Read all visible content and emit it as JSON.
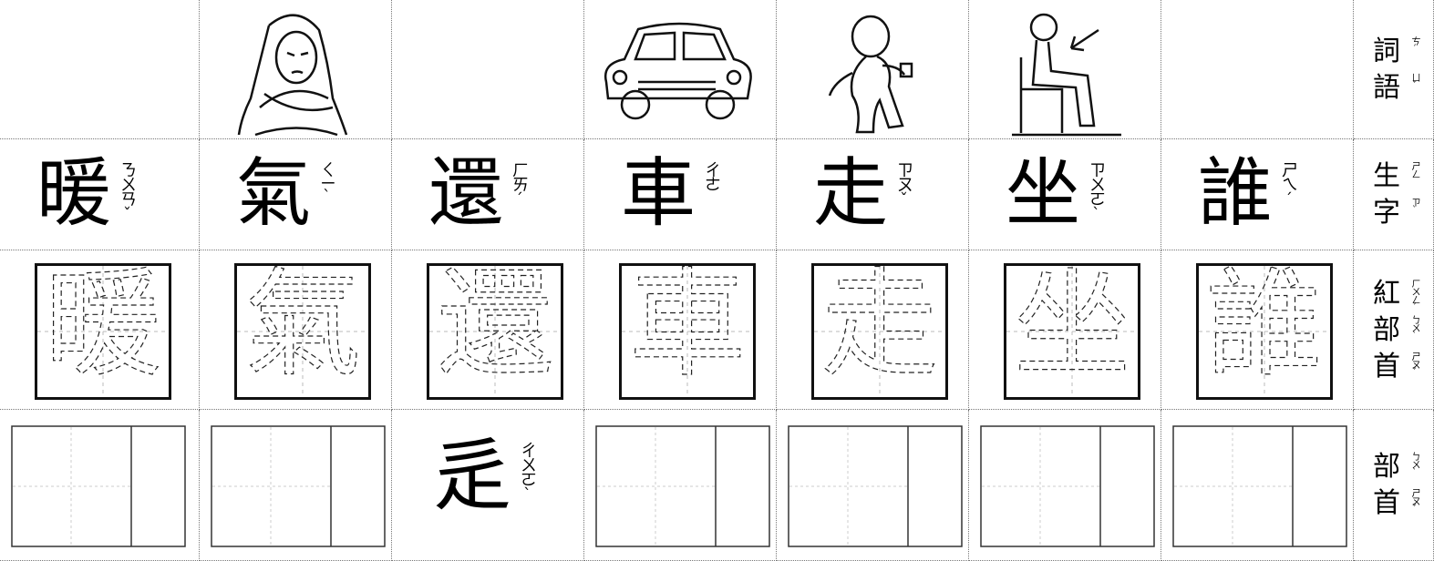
{
  "row_labels": [
    [
      {
        "char": "詞",
        "zhuyin": "ㄘˊ"
      },
      {
        "char": "語",
        "zhuyin": "ㄩˇ"
      }
    ],
    [
      {
        "char": "生",
        "zhuyin": "ㄕㄥ"
      },
      {
        "char": "字",
        "zhuyin": "ㄗˋ"
      }
    ],
    [
      {
        "char": "紅",
        "zhuyin": "ㄏㄨㄥˊ"
      },
      {
        "char": "部",
        "zhuyin": "ㄅㄨˋ"
      },
      {
        "char": "首",
        "zhuyin": "ㄕㄡˇ"
      }
    ],
    [
      {
        "char": "部",
        "zhuyin": "ㄅㄨˋ"
      },
      {
        "char": "首",
        "zhuyin": "ㄕㄡˇ"
      }
    ]
  ],
  "characters": [
    {
      "char": "暖",
      "zhuyin": "ㄋㄨㄢˇ"
    },
    {
      "char": "氣",
      "zhuyin": "ㄑㄧˋ"
    },
    {
      "char": "還",
      "zhuyin": "ㄏㄞˊ"
    },
    {
      "char": "車",
      "zhuyin": "ㄔㄜ"
    },
    {
      "char": "走",
      "zhuyin": "ㄗㄡˇ"
    },
    {
      "char": "坐",
      "zhuyin": "ㄗㄨㄛˋ"
    },
    {
      "char": "誰",
      "zhuyin": "ㄕㄟˊ"
    }
  ],
  "radicals": [
    null,
    null,
    {
      "char": "辵",
      "zhuyin": "ㄔㄨㄛˋ"
    },
    null,
    null,
    null,
    null
  ]
}
